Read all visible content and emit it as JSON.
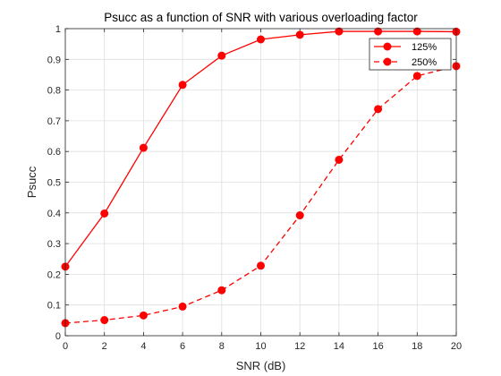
{
  "chart_data": {
    "type": "line",
    "title": "Psucc as a function of SNR with various overloading factor",
    "xlabel": "SNR (dB)",
    "ylabel": "Psucc",
    "xlim": [
      0,
      20
    ],
    "ylim": [
      0,
      1
    ],
    "xticks": [
      0,
      2,
      4,
      6,
      8,
      10,
      12,
      14,
      16,
      18,
      20
    ],
    "yticks": [
      0,
      0.1,
      0.2,
      0.3,
      0.4,
      0.5,
      0.6,
      0.7,
      0.8,
      0.9,
      1
    ],
    "grid": true,
    "legend_position": "top-right",
    "x": [
      0,
      2,
      4,
      6,
      8,
      10,
      12,
      14,
      16,
      18,
      20
    ],
    "series": [
      {
        "name": "125%",
        "values": [
          0.225,
          0.398,
          0.612,
          0.817,
          0.912,
          0.965,
          0.98,
          0.991,
          0.991,
          0.991,
          0.99
        ],
        "color": "#ff0000",
        "line_style": "solid",
        "marker": "circle"
      },
      {
        "name": "250%",
        "values": [
          0.041,
          0.051,
          0.066,
          0.095,
          0.148,
          0.228,
          0.392,
          0.573,
          0.738,
          0.846,
          0.878
        ],
        "color": "#ff0000",
        "line_style": "dashed",
        "marker": "circle"
      }
    ]
  }
}
